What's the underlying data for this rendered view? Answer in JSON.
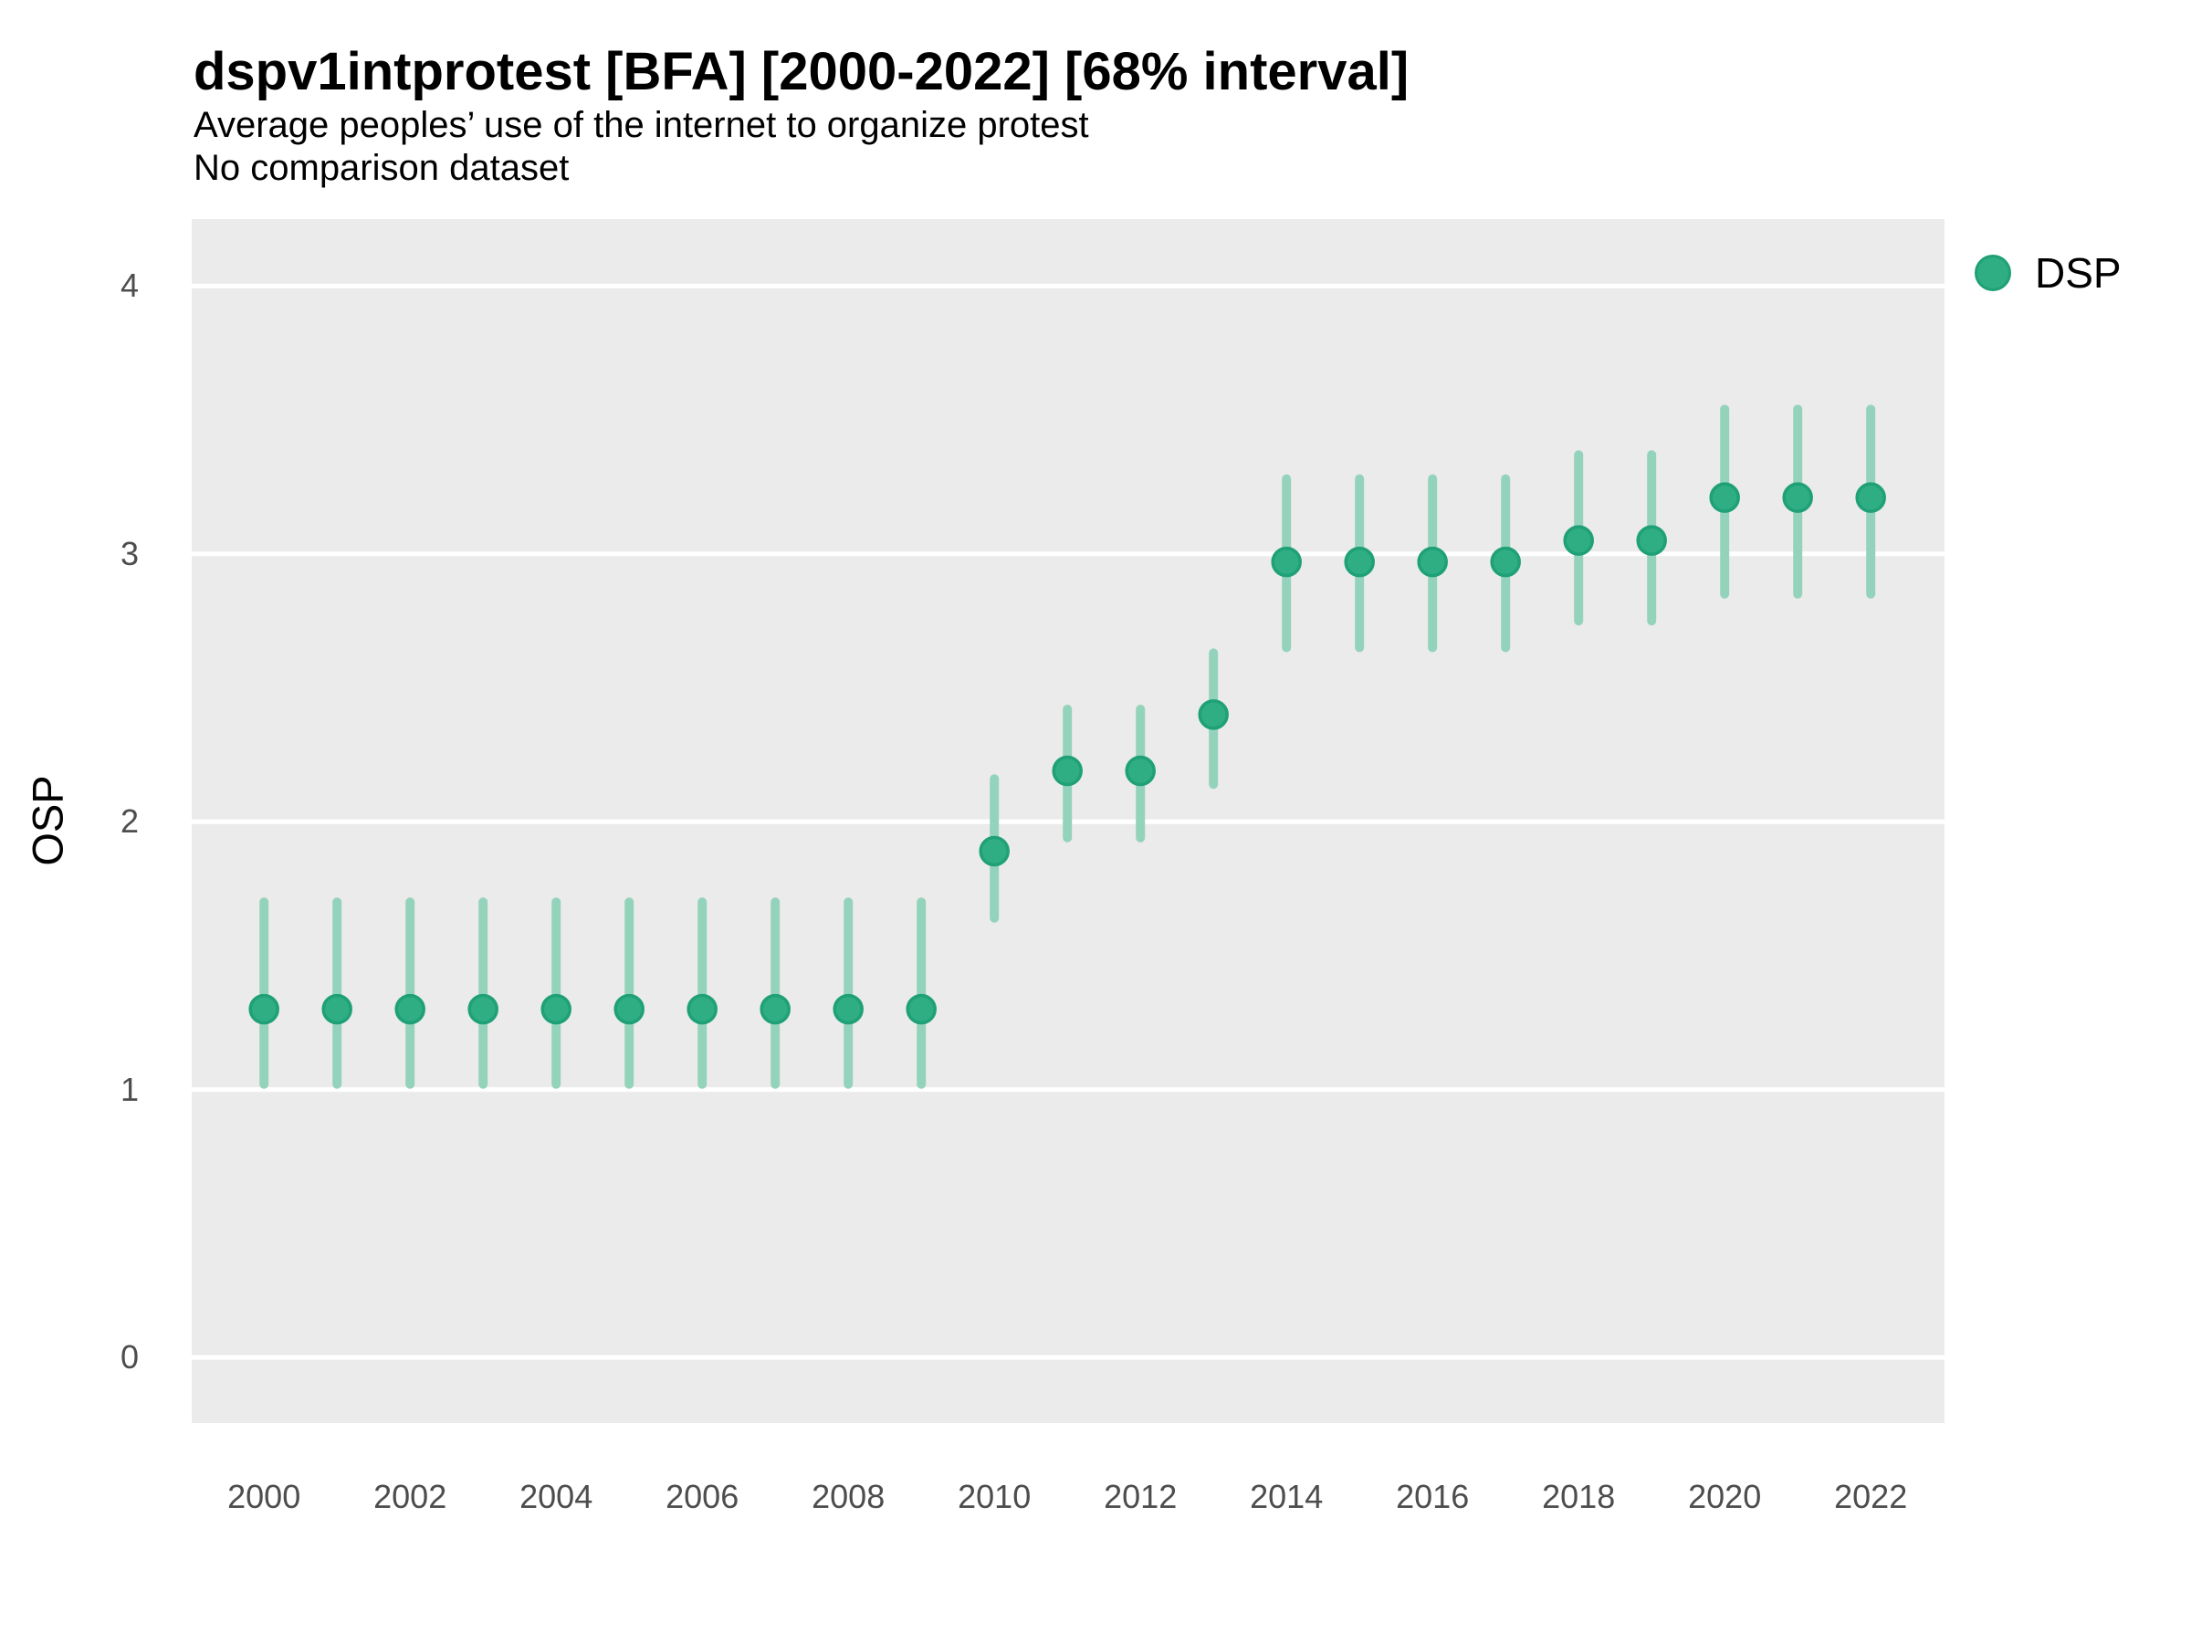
{
  "header": {
    "title": "dspv1intprotest [BFA] [2000-2022] [68% interval]",
    "subtitle1": "Average peoples’ use of the internet to organize protest",
    "subtitle2": "No comparison dataset"
  },
  "legend": {
    "items": [
      {
        "label": "DSP",
        "color": "#2fae84"
      }
    ]
  },
  "axes": {
    "y": {
      "label": "OSP",
      "ticks": [
        0,
        1,
        2,
        3,
        4
      ],
      "domain": [
        -0.245,
        4.25
      ]
    },
    "x": {
      "ticks": [
        2000,
        2002,
        2004,
        2006,
        2008,
        2010,
        2012,
        2014,
        2016,
        2018,
        2020,
        2022
      ],
      "domain": [
        1999.01,
        2023.01
      ]
    }
  },
  "colors": {
    "point_fill": "#2fae84",
    "point_stroke": "#1fa077",
    "interval_bar": "#94d3bb",
    "panel_bg": "#ebebeb",
    "gridline": "#ffffff",
    "tick_label": "#4d4d4d"
  },
  "chart_data": {
    "type": "scatter",
    "title": "dspv1intprotest [BFA] [2000-2022] [68% interval]",
    "subtitle": "Average peoples’ use of the internet to organize protest",
    "note": "No comparison dataset",
    "interval": "68%",
    "xlabel": "",
    "ylabel": "OSP",
    "ylim": [
      -0.245,
      4.25
    ],
    "xlim": [
      1999.01,
      2023.01
    ],
    "grid": "horizontal-major-only",
    "legend_position": "right-top",
    "series": [
      {
        "name": "DSP",
        "x": [
          2000,
          2001,
          2002,
          2003,
          2004,
          2005,
          2006,
          2007,
          2008,
          2009,
          2010,
          2011,
          2012,
          2013,
          2014,
          2015,
          2016,
          2017,
          2018,
          2019,
          2020,
          2021,
          2022
        ],
        "y": [
          1.3,
          1.3,
          1.3,
          1.3,
          1.3,
          1.3,
          1.3,
          1.3,
          1.3,
          1.3,
          1.89,
          2.19,
          2.19,
          2.4,
          2.97,
          2.97,
          2.97,
          2.97,
          3.05,
          3.05,
          3.21,
          3.21,
          3.21
        ],
        "y_lo": [
          1.02,
          1.02,
          1.02,
          1.02,
          1.02,
          1.02,
          1.02,
          1.02,
          1.02,
          1.02,
          1.64,
          1.94,
          1.94,
          2.14,
          2.65,
          2.65,
          2.65,
          2.65,
          2.75,
          2.75,
          2.85,
          2.85,
          2.85
        ],
        "y_hi": [
          1.7,
          1.7,
          1.7,
          1.7,
          1.7,
          1.7,
          1.7,
          1.7,
          1.7,
          1.7,
          2.16,
          2.42,
          2.42,
          2.63,
          3.28,
          3.28,
          3.28,
          3.28,
          3.37,
          3.37,
          3.54,
          3.54,
          3.54
        ]
      }
    ]
  }
}
